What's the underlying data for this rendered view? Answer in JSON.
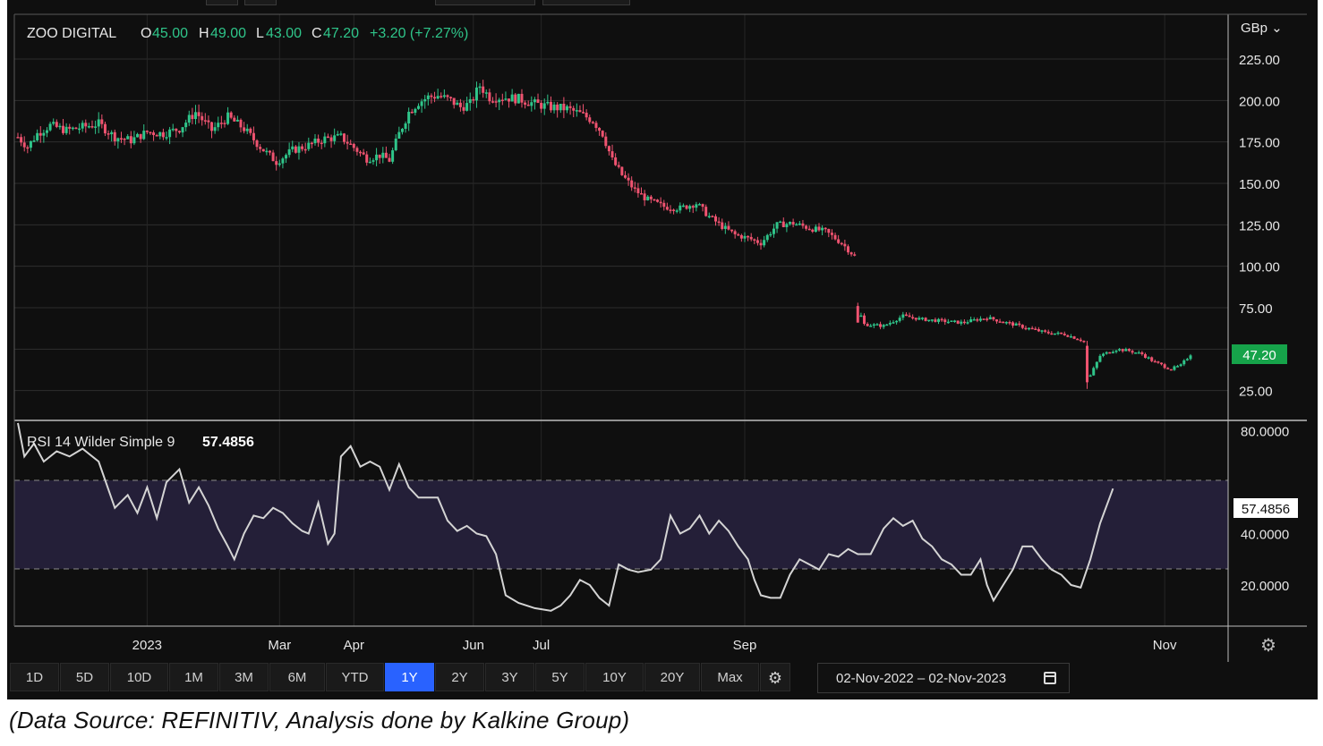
{
  "instrument": {
    "name": "ZOO DIGITAL",
    "open_label": "O",
    "open": "45.00",
    "high_label": "H",
    "high": "49.00",
    "low_label": "L",
    "low": "43.00",
    "close_label": "C",
    "close": "47.20",
    "change": "+3.20 (+7.27%)"
  },
  "currency_label": "GBp",
  "last_price_badge": "47.20",
  "rsi_header": {
    "label": "RSI 14 Wilder Simple 9",
    "value": "57.4856"
  },
  "rsi_badge": "57.4856",
  "range_buttons": [
    "1D",
    "5D",
    "10D",
    "1M",
    "3M",
    "6M",
    "YTD",
    "1Y",
    "2Y",
    "3Y",
    "5Y",
    "10Y",
    "20Y",
    "Max"
  ],
  "active_range": "1Y",
  "date_range": "02-Nov-2022  –  02-Nov-2023",
  "caption": "(Data Source: REFINITIV, Analysis done by Kalkine Group)",
  "colors": {
    "up": "#26a69a",
    "down": "#ef5370",
    "up_bright": "#2fc58a",
    "accent": "#2962ff",
    "rsi_line": "#d0d0d0",
    "rsi_band": "#241f38"
  },
  "icons": {
    "gear": "gear-icon",
    "calendar": "calendar-icon",
    "settings": "settings-icon"
  },
  "chart_data": [
    {
      "type": "candlestick",
      "title": "ZOO DIGITAL",
      "x_tick_labels": [
        "2023",
        "Mar",
        "Apr",
        "Jun",
        "Jul",
        "Sep",
        "Nov"
      ],
      "y_ticks": [
        "225.00",
        "200.00",
        "175.00",
        "150.00",
        "125.00",
        "100.00",
        "75.00",
        "25.00"
      ],
      "ylim": [
        7,
        252
      ],
      "unit": "GBp",
      "close_path": [
        [
          0,
          178
        ],
        [
          3,
          172
        ],
        [
          6,
          180
        ],
        [
          10,
          185
        ],
        [
          15,
          182
        ],
        [
          20,
          184
        ],
        [
          25,
          186
        ],
        [
          30,
          178
        ],
        [
          35,
          176
        ],
        [
          40,
          181
        ],
        [
          45,
          180
        ],
        [
          50,
          183
        ],
        [
          55,
          193
        ],
        [
          60,
          182
        ],
        [
          65,
          190
        ],
        [
          70,
          183
        ],
        [
          75,
          172
        ],
        [
          80,
          163
        ],
        [
          85,
          170
        ],
        [
          90,
          173
        ],
        [
          95,
          177
        ],
        [
          100,
          178
        ],
        [
          105,
          170
        ],
        [
          108,
          165
        ],
        [
          112,
          167
        ],
        [
          115,
          164
        ],
        [
          118,
          180
        ],
        [
          121,
          193
        ],
        [
          124,
          199
        ],
        [
          127,
          202
        ],
        [
          130,
          203
        ],
        [
          134,
          200
        ],
        [
          137,
          196
        ],
        [
          140,
          198
        ],
        [
          143,
          209
        ],
        [
          146,
          202
        ],
        [
          150,
          202
        ],
        [
          155,
          201
        ],
        [
          160,
          198
        ],
        [
          165,
          196
        ],
        [
          170,
          195
        ],
        [
          174,
          192
        ],
        [
          178,
          188
        ],
        [
          181,
          180
        ],
        [
          184,
          164
        ],
        [
          187,
          155
        ],
        [
          191,
          146
        ],
        [
          195,
          140
        ],
        [
          200,
          136
        ],
        [
          205,
          135
        ],
        [
          210,
          138
        ],
        [
          214,
          130
        ],
        [
          218,
          124
        ],
        [
          222,
          119
        ],
        [
          226,
          117
        ],
        [
          230,
          114
        ],
        [
          235,
          125
        ],
        [
          240,
          126
        ],
        [
          245,
          123
        ],
        [
          250,
          121
        ],
        [
          255,
          114
        ],
        [
          259,
          106
        ],
        [
          260,
          75
        ],
        [
          262,
          65
        ],
        [
          268,
          64
        ],
        [
          274,
          70
        ],
        [
          280,
          68
        ],
        [
          286,
          67
        ],
        [
          292,
          66
        ],
        [
          300,
          69
        ],
        [
          306,
          66
        ],
        [
          312,
          63
        ],
        [
          318,
          60
        ],
        [
          324,
          59
        ],
        [
          330,
          55
        ],
        [
          331,
          30
        ],
        [
          335,
          46
        ],
        [
          340,
          50
        ],
        [
          344,
          49
        ],
        [
          348,
          47
        ],
        [
          352,
          42
        ],
        [
          357,
          38
        ],
        [
          360,
          40
        ],
        [
          363,
          47
        ]
      ],
      "ohlc_last": {
        "open": 45.0,
        "high": 49.0,
        "low": 43.0,
        "close": 47.2
      }
    },
    {
      "type": "line",
      "title": "RSI 14 Wilder Simple 9",
      "y_ticks": [
        "80.0000",
        "40.0000",
        "20.0000"
      ],
      "overbought": 70,
      "oversold": 30,
      "ylim": [
        4,
        84
      ],
      "series": [
        {
          "values": [
            [
              0,
              83
            ],
            [
              2,
              70
            ],
            [
              5,
              75
            ],
            [
              8,
              68
            ],
            [
              12,
              72
            ],
            [
              16,
              70
            ],
            [
              20,
              73
            ],
            [
              25,
              68
            ],
            [
              30,
              50
            ],
            [
              34,
              55
            ],
            [
              37,
              48
            ],
            [
              40,
              58
            ],
            [
              43,
              46
            ],
            [
              46,
              60
            ],
            [
              50,
              65
            ],
            [
              53,
              52
            ],
            [
              56,
              58
            ],
            [
              59,
              51
            ],
            [
              62,
              42
            ],
            [
              65,
              35
            ],
            [
              67,
              30
            ],
            [
              70,
              40
            ],
            [
              73,
              47
            ],
            [
              76,
              46
            ],
            [
              79,
              50
            ],
            [
              82,
              48
            ],
            [
              85,
              44
            ],
            [
              88,
              41
            ],
            [
              90,
              40
            ],
            [
              93,
              52
            ],
            [
              96,
              36
            ],
            [
              98,
              40
            ],
            [
              100,
              70
            ],
            [
              103,
              74
            ],
            [
              106,
              66
            ],
            [
              109,
              68
            ],
            [
              112,
              66
            ],
            [
              115,
              57
            ],
            [
              118,
              67
            ],
            [
              121,
              58
            ],
            [
              124,
              54
            ],
            [
              127,
              54
            ],
            [
              130,
              54
            ],
            [
              133,
              45
            ],
            [
              136,
              41
            ],
            [
              139,
              43
            ],
            [
              142,
              40
            ],
            [
              145,
              39
            ],
            [
              148,
              32
            ],
            [
              151,
              16
            ],
            [
              155,
              13
            ],
            [
              160,
              11
            ],
            [
              165,
              10
            ],
            [
              168,
              12
            ],
            [
              171,
              16
            ],
            [
              174,
              22
            ],
            [
              177,
              20
            ],
            [
              180,
              15
            ],
            [
              183,
              12
            ],
            [
              186,
              28
            ],
            [
              189,
              26
            ],
            [
              192,
              25
            ],
            [
              196,
              26
            ],
            [
              199,
              30
            ],
            [
              202,
              47
            ],
            [
              205,
              40
            ],
            [
              208,
              42
            ],
            [
              211,
              47
            ],
            [
              214,
              40
            ],
            [
              217,
              45
            ],
            [
              220,
              41
            ],
            [
              223,
              35
            ],
            [
              226,
              30
            ],
            [
              228,
              22
            ],
            [
              230,
              16
            ],
            [
              233,
              15
            ],
            [
              236,
              15
            ],
            [
              239,
              24
            ],
            [
              242,
              30
            ],
            [
              245,
              28
            ],
            [
              248,
              26
            ],
            [
              251,
              32
            ],
            [
              254,
              31
            ],
            [
              257,
              34
            ],
            [
              260,
              32
            ],
            [
              264,
              32
            ],
            [
              268,
              42
            ],
            [
              271,
              46
            ],
            [
              274,
              43
            ],
            [
              277,
              45
            ],
            [
              280,
              38
            ],
            [
              283,
              35
            ],
            [
              286,
              30
            ],
            [
              289,
              28
            ],
            [
              292,
              24
            ],
            [
              295,
              24
            ],
            [
              298,
              30
            ],
            [
              300,
              20
            ],
            [
              302,
              14
            ],
            [
              305,
              20
            ],
            [
              308,
              26
            ],
            [
              311,
              35
            ],
            [
              314,
              35
            ],
            [
              317,
              30
            ],
            [
              320,
              26
            ],
            [
              323,
              24
            ],
            [
              326,
              20
            ],
            [
              329,
              19
            ],
            [
              332,
              30
            ],
            [
              335,
              44
            ],
            [
              339,
              57.4856
            ]
          ]
        }
      ]
    }
  ]
}
